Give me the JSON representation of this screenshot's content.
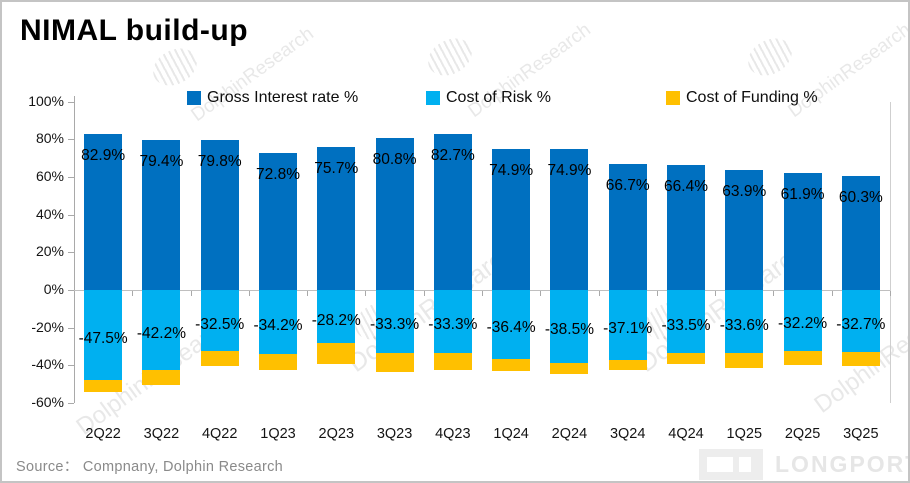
{
  "header": {
    "title": "NIMAL build-up"
  },
  "legend": [
    {
      "label": "Gross Interest rate %",
      "color": "#0070C0"
    },
    {
      "label": "Cost of Risk %",
      "color": "#00B0F0"
    },
    {
      "label": "Cost of Funding %",
      "color": "#FFC000"
    }
  ],
  "footer": {
    "source": "Source：  Compnany, Dolphin Research"
  },
  "watermark": {
    "diagonal_text": "DolphinResearch",
    "brand_text": "LONGPORT"
  },
  "chart_data": {
    "type": "bar",
    "stacked": true,
    "title": "NIMAL build-up",
    "xlabel": "",
    "ylabel": "",
    "ylim": [
      -60,
      100
    ],
    "ytick_step": 20,
    "ytick_labels": [
      "100%",
      "80%",
      "60%",
      "40%",
      "20%",
      "0%",
      "-20%",
      "-40%",
      "-60%"
    ],
    "grid": false,
    "legend_position": "top",
    "categories": [
      "2Q22",
      "3Q22",
      "4Q22",
      "1Q23",
      "2Q23",
      "3Q23",
      "4Q23",
      "1Q24",
      "2Q24",
      "3Q24",
      "4Q24",
      "1Q25",
      "2Q25",
      "3Q25"
    ],
    "series": [
      {
        "name": "Gross Interest rate %",
        "color": "#0070C0",
        "labeled": true,
        "values": [
          82.9,
          79.4,
          79.8,
          72.8,
          75.7,
          80.8,
          82.7,
          74.9,
          74.9,
          66.7,
          66.4,
          63.9,
          61.9,
          60.3
        ]
      },
      {
        "name": "Cost of Risk %",
        "color": "#00B0F0",
        "labeled": true,
        "values": [
          -47.5,
          -42.2,
          -32.5,
          -34.2,
          -28.2,
          -33.3,
          -33.3,
          -36.4,
          -38.5,
          -37.1,
          -33.5,
          -33.6,
          -32.2,
          -32.7
        ]
      },
      {
        "name": "Cost of Funding %",
        "color": "#FFC000",
        "labeled": false,
        "note": "segment heights not labeled in chart; values estimated from pixels",
        "values": [
          -6.5,
          -8.0,
          -8.0,
          -8.5,
          -11.0,
          -10.0,
          -9.0,
          -6.5,
          -6.0,
          -5.5,
          -6.0,
          -8.0,
          -7.5,
          -7.5
        ]
      }
    ]
  }
}
